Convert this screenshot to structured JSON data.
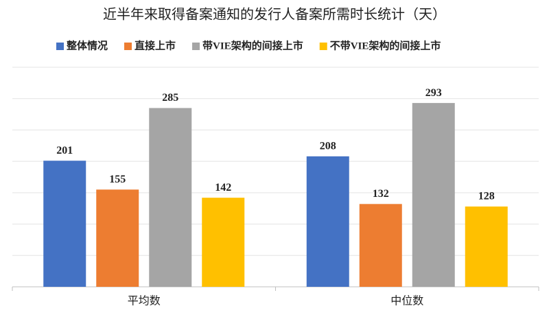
{
  "chart_data": {
    "type": "bar",
    "title": "近半年来取得备案通知的发行人备案所需时长统计（天）",
    "categories": [
      "平均数",
      "中位数"
    ],
    "series": [
      {
        "name": "整体情况",
        "color": "#4472c4",
        "values": [
          201,
          208
        ]
      },
      {
        "name": "直接上市",
        "color": "#ed7d31",
        "values": [
          155,
          132
        ]
      },
      {
        "name": "带VIE架构的间接上市",
        "color": "#a5a5a5",
        "values": [
          285,
          293
        ]
      },
      {
        "name": "不带VIE架构的间接上市",
        "color": "#ffc000",
        "values": [
          142,
          128
        ]
      }
    ],
    "ylim": [
      0,
      350
    ],
    "yticks": [
      0,
      50,
      100,
      150,
      200,
      250,
      300,
      350
    ],
    "grid": true,
    "legend": "top",
    "data_labels": true
  }
}
